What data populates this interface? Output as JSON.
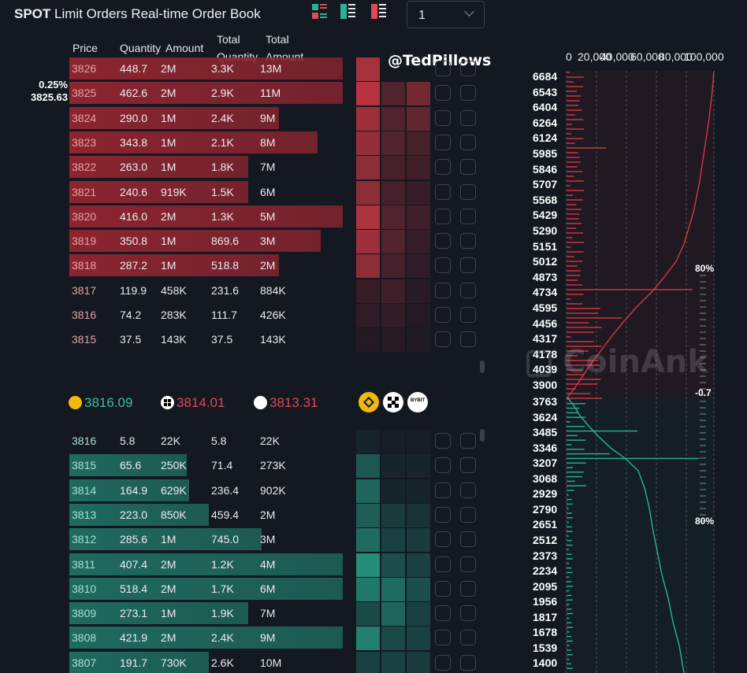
{
  "header": {
    "title_bold": "SPOT",
    "title_rest": "Limit Orders Real-time Order Book",
    "group_select_value": "1"
  },
  "colors": {
    "background": "#141821",
    "ask": "#d23a44",
    "bid": "#2bb196",
    "ask_text": "#e04a52",
    "bid_text": "#3fbf9e"
  },
  "columns": {
    "price": "Price",
    "quantity": "Quantity",
    "amount": "Amount",
    "total_quantity_1": "Total",
    "total_quantity_2": "Quantity",
    "total_amount_1": "Total",
    "total_amount_2": "Amount"
  },
  "watermark": "@TedPillows",
  "spread": {
    "pct": "0.25%",
    "price": "3825.63"
  },
  "asks": [
    {
      "price": "3826",
      "qty": "448.7",
      "amount": "2M",
      "total_qty": "3.3K",
      "total_amount": "13M",
      "fill": 0.98
    },
    {
      "price": "3825",
      "qty": "462.6",
      "amount": "2M",
      "total_qty": "2.9K",
      "total_amount": "11M",
      "fill": 0.98
    },
    {
      "price": "3824",
      "qty": "290.0",
      "amount": "1M",
      "total_qty": "2.4K",
      "total_amount": "9M",
      "fill": 0.75
    },
    {
      "price": "3823",
      "qty": "343.8",
      "amount": "1M",
      "total_qty": "2.1K",
      "total_amount": "8M",
      "fill": 0.89
    },
    {
      "price": "3822",
      "qty": "263.0",
      "amount": "1M",
      "total_qty": "1.8K",
      "total_amount": "7M",
      "fill": 0.64
    },
    {
      "price": "3821",
      "qty": "240.6",
      "amount": "919K",
      "total_qty": "1.5K",
      "total_amount": "6M",
      "fill": 0.64
    },
    {
      "price": "3820",
      "qty": "416.0",
      "amount": "2M",
      "total_qty": "1.3K",
      "total_amount": "5M",
      "fill": 0.98
    },
    {
      "price": "3819",
      "qty": "350.8",
      "amount": "1M",
      "total_qty": "869.6",
      "total_amount": "3M",
      "fill": 0.9
    },
    {
      "price": "3818",
      "qty": "287.2",
      "amount": "1M",
      "total_qty": "518.8",
      "total_amount": "2M",
      "fill": 0.75
    },
    {
      "price": "3817",
      "qty": "119.9",
      "amount": "458K",
      "total_qty": "231.6",
      "total_amount": "884K",
      "fill": 0.0
    },
    {
      "price": "3816",
      "qty": "74.2",
      "amount": "283K",
      "total_qty": "111.7",
      "total_amount": "426K",
      "fill": 0.0
    },
    {
      "price": "3815",
      "qty": "37.5",
      "amount": "143K",
      "total_qty": "37.5",
      "total_amount": "143K",
      "fill": 0.0
    }
  ],
  "mid_prices": [
    {
      "exchange_icon": "binance-coin-icon",
      "value": "3816.09",
      "color": "#3fbf9e"
    },
    {
      "exchange_icon": "okx-coin-icon",
      "value": "3814.01",
      "color": "#e04a52"
    },
    {
      "exchange_icon": "bybit-coin-icon",
      "value": "3813.31",
      "color": "#e04a52"
    }
  ],
  "exchange_badges": [
    "BYBIT"
  ],
  "bids": [
    {
      "price": "3816",
      "qty": "5.8",
      "amount": "22K",
      "total_qty": "5.8",
      "total_amount": "22K",
      "fill": 0.0
    },
    {
      "price": "3815",
      "qty": "65.6",
      "amount": "250K",
      "total_qty": "71.4",
      "total_amount": "273K",
      "fill": 0.42
    },
    {
      "price": "3814",
      "qty": "164.9",
      "amount": "629K",
      "total_qty": "236.4",
      "total_amount": "902K",
      "fill": 0.43
    },
    {
      "price": "3813",
      "qty": "223.0",
      "amount": "850K",
      "total_qty": "459.4",
      "total_amount": "2M",
      "fill": 0.5
    },
    {
      "price": "3812",
      "qty": "285.6",
      "amount": "1M",
      "total_qty": "745.0",
      "total_amount": "3M",
      "fill": 0.69
    },
    {
      "price": "3811",
      "qty": "407.4",
      "amount": "2M",
      "total_qty": "1.2K",
      "total_amount": "4M",
      "fill": 0.98
    },
    {
      "price": "3810",
      "qty": "518.4",
      "amount": "2M",
      "total_qty": "1.7K",
      "total_amount": "6M",
      "fill": 0.98
    },
    {
      "price": "3809",
      "qty": "273.1",
      "amount": "1M",
      "total_qty": "1.9K",
      "total_amount": "7M",
      "fill": 0.64
    },
    {
      "price": "3808",
      "qty": "421.9",
      "amount": "2M",
      "total_qty": "2.4K",
      "total_amount": "9M",
      "fill": 0.98
    },
    {
      "price": "3807",
      "qty": "191.7",
      "amount": "730K",
      "total_qty": "2.6K",
      "total_amount": "10M",
      "fill": 0.5
    }
  ],
  "depth": {
    "x_axis_labels": [
      "0",
      "20,000",
      "40,000",
      "60,000",
      "80,000",
      "100,000"
    ],
    "ask_price_labels": [
      "6684",
      "6543",
      "6404",
      "6264",
      "6124",
      "5985",
      "5846",
      "5707",
      "5568",
      "5429",
      "5290",
      "5151",
      "5012",
      "4873",
      "4734",
      "4595",
      "4456",
      "4317",
      "4178",
      "4039",
      "3900"
    ],
    "bid_price_labels": [
      "3763",
      "3624",
      "3485",
      "3346",
      "3207",
      "3068",
      "2929",
      "2790",
      "2651",
      "2512",
      "2373",
      "2234",
      "2095",
      "1956",
      "1817",
      "1678",
      "1539",
      "1400"
    ],
    "upper_pct": "80%",
    "mid_pct": "-0.7",
    "lower_pct": "80%",
    "watermark": "CoinAnk"
  }
}
